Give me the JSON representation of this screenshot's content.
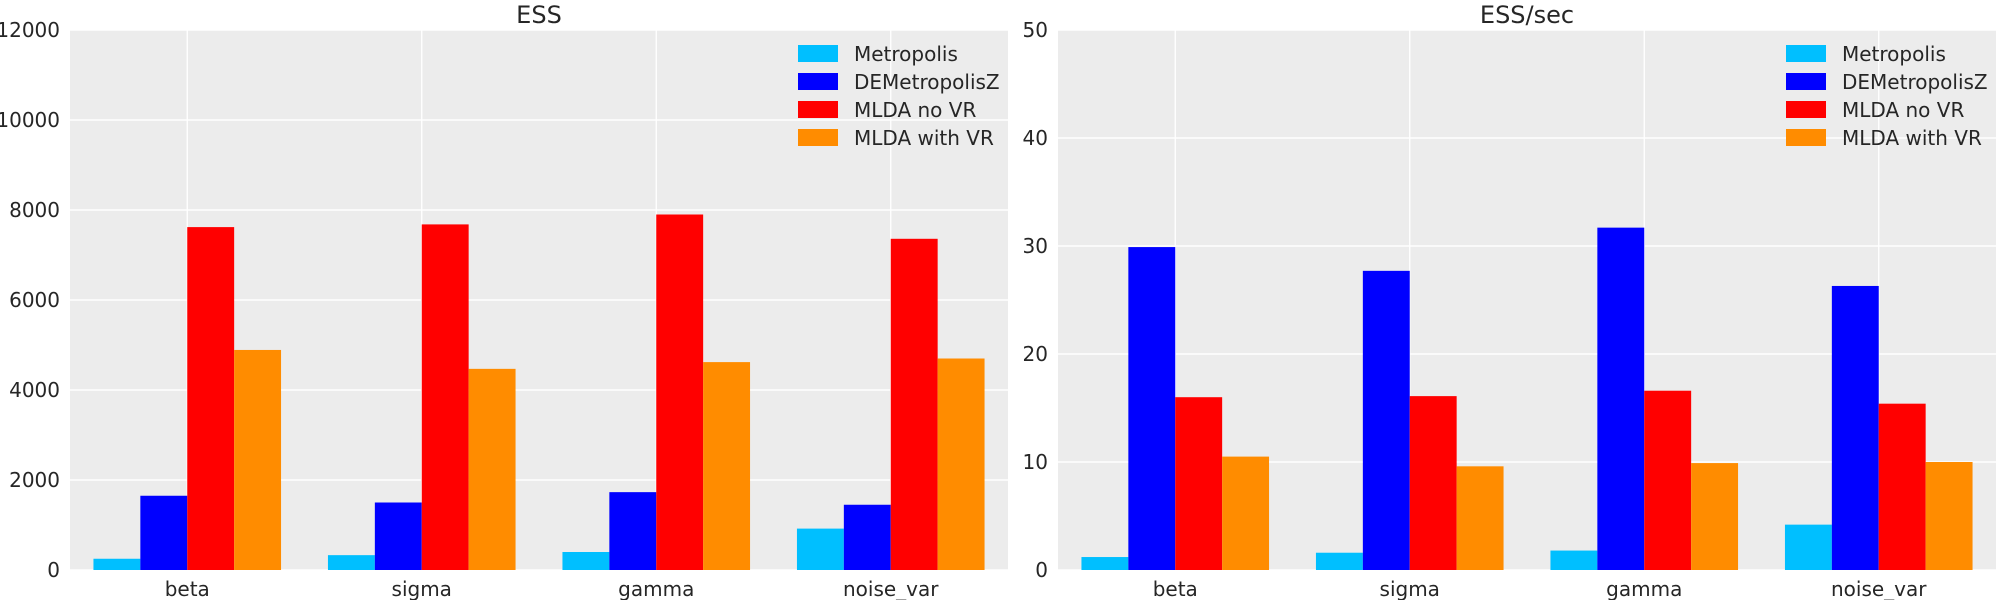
{
  "chart_data": [
    {
      "type": "bar",
      "title": "ESS",
      "xlabel": "",
      "ylabel": "",
      "categories": [
        "beta",
        "sigma",
        "gamma",
        "noise_var"
      ],
      "ylim": [
        0,
        12000
      ],
      "yticks": [
        0,
        2000,
        4000,
        6000,
        8000,
        10000,
        12000
      ],
      "yticklabels": [
        "0",
        "2000",
        "4000",
        "6000",
        "8000",
        "10000",
        "12000"
      ],
      "grid": true,
      "legend": "top-right",
      "series": [
        {
          "name": "Metropolis",
          "color": "#00bfff",
          "values": [
            250,
            330,
            400,
            920
          ]
        },
        {
          "name": "DEMetropolisZ",
          "color": "#0000ff",
          "values": [
            1650,
            1500,
            1730,
            1450
          ]
        },
        {
          "name": "MLDA no VR",
          "color": "#ff0000",
          "values": [
            7620,
            7680,
            7900,
            7360
          ]
        },
        {
          "name": "MLDA with VR",
          "color": "#ff8c00",
          "values": [
            4890,
            4470,
            4620,
            4700
          ]
        }
      ]
    },
    {
      "type": "bar",
      "title": "ESS/sec",
      "xlabel": "",
      "ylabel": "",
      "categories": [
        "beta",
        "sigma",
        "gamma",
        "noise_var"
      ],
      "ylim": [
        0,
        50
      ],
      "yticks": [
        0,
        10,
        20,
        30,
        40,
        50
      ],
      "yticklabels": [
        "0",
        "10",
        "20",
        "30",
        "40",
        "50"
      ],
      "grid": true,
      "legend": "top-right",
      "series": [
        {
          "name": "Metropolis",
          "color": "#00bfff",
          "values": [
            1.2,
            1.6,
            1.8,
            4.2
          ]
        },
        {
          "name": "DEMetropolisZ",
          "color": "#0000ff",
          "values": [
            29.9,
            27.7,
            31.7,
            26.3
          ]
        },
        {
          "name": "MLDA no VR",
          "color": "#ff0000",
          "values": [
            16.0,
            16.1,
            16.6,
            15.4
          ]
        },
        {
          "name": "MLDA with VR",
          "color": "#ff8c00",
          "values": [
            10.5,
            9.6,
            9.9,
            10.0
          ]
        }
      ]
    }
  ]
}
